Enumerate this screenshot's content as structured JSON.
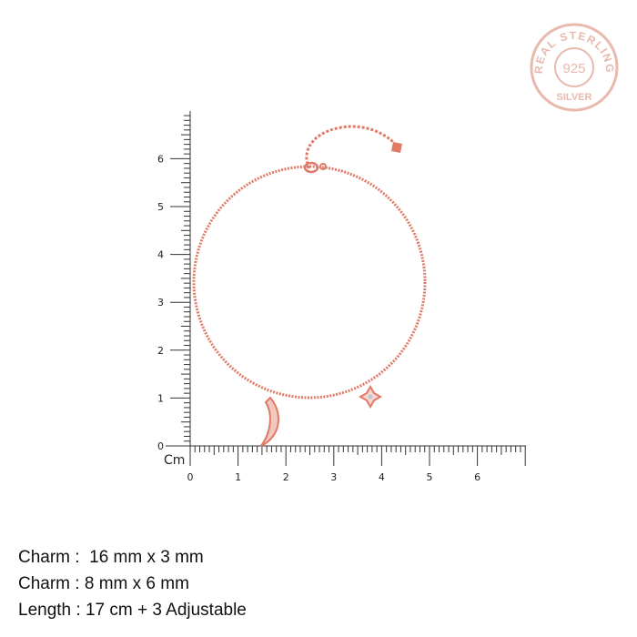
{
  "badge": {
    "top_text": "REAL STERLING",
    "center_text": "925",
    "bottom_text": "SILVER",
    "color": "#e8b9ad"
  },
  "ruler": {
    "unit_label": "Cm",
    "x_ticks": [
      "0",
      "1",
      "2",
      "3",
      "4",
      "5",
      "6"
    ],
    "y_ticks": [
      "0",
      "1",
      "2",
      "3",
      "4",
      "5",
      "6"
    ],
    "color": "#333333"
  },
  "product": {
    "metal_color": "#e07a66"
  },
  "specs": [
    "Charm :  16 mm x 3 mm",
    "Charm : 8 mm x 6 mm",
    "Length : 17 cm + 3 Adjustable"
  ]
}
